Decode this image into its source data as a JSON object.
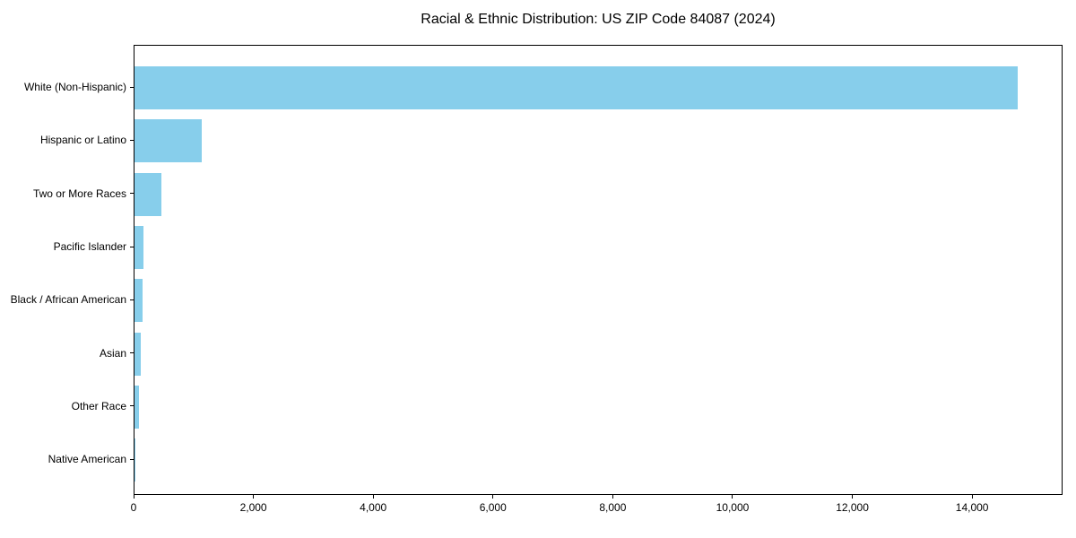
{
  "title": "Racial & Ethnic Distribution: US ZIP Code 84087 (2024)",
  "chart_data": {
    "type": "bar",
    "orientation": "horizontal",
    "title": "Racial & Ethnic Distribution: US ZIP Code 84087 (2024)",
    "categories": [
      "White (Non-Hispanic)",
      "Hispanic or Latino",
      "Two or More Races",
      "Pacific Islander",
      "Black / African American",
      "Asian",
      "Other Race",
      "Native American"
    ],
    "values": [
      14770,
      1120,
      450,
      150,
      140,
      100,
      70,
      10
    ],
    "xlabel": "",
    "ylabel": "",
    "xlim": [
      0,
      15510
    ],
    "xticks": [
      0,
      2000,
      4000,
      6000,
      8000,
      10000,
      12000,
      14000
    ],
    "xtick_labels": [
      "0",
      "2,000",
      "4,000",
      "6,000",
      "8,000",
      "10,000",
      "12,000",
      "14,000"
    ],
    "bar_color": "#87CEEB",
    "spine_color": "#000000",
    "grid": false,
    "legend": null
  }
}
